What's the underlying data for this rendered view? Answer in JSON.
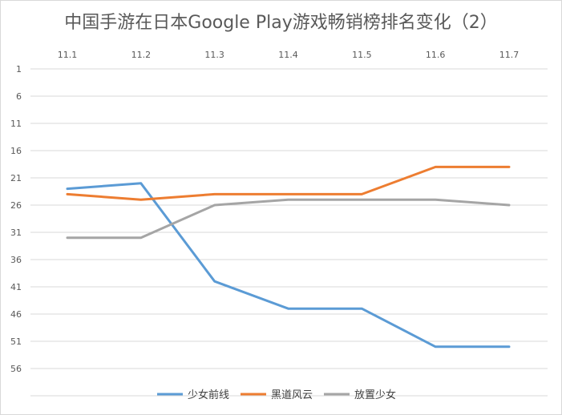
{
  "chart_data": {
    "type": "line",
    "title": "中国手游在日本Google Play游戏畅销榜排名变化（2）",
    "categories": [
      "11.1",
      "11.2",
      "11.3",
      "11.4",
      "11.5",
      "11.6",
      "11.7"
    ],
    "y_ticks": [
      "1",
      "6",
      "11",
      "16",
      "21",
      "26",
      "31",
      "36",
      "41",
      "46",
      "51",
      "56"
    ],
    "ylim": [
      1,
      61
    ],
    "y_reversed": true,
    "grid": true,
    "legend_position": "bottom",
    "series": [
      {
        "name": "少女前线",
        "color": "#5b9bd5",
        "values": [
          23,
          22,
          40,
          45,
          45,
          52,
          52
        ]
      },
      {
        "name": "黑道风云",
        "color": "#ed7d31",
        "values": [
          24,
          25,
          24,
          24,
          24,
          19,
          19
        ]
      },
      {
        "name": "放置少女",
        "color": "#a5a5a5",
        "values": [
          32,
          32,
          26,
          25,
          25,
          25,
          26
        ]
      }
    ]
  }
}
